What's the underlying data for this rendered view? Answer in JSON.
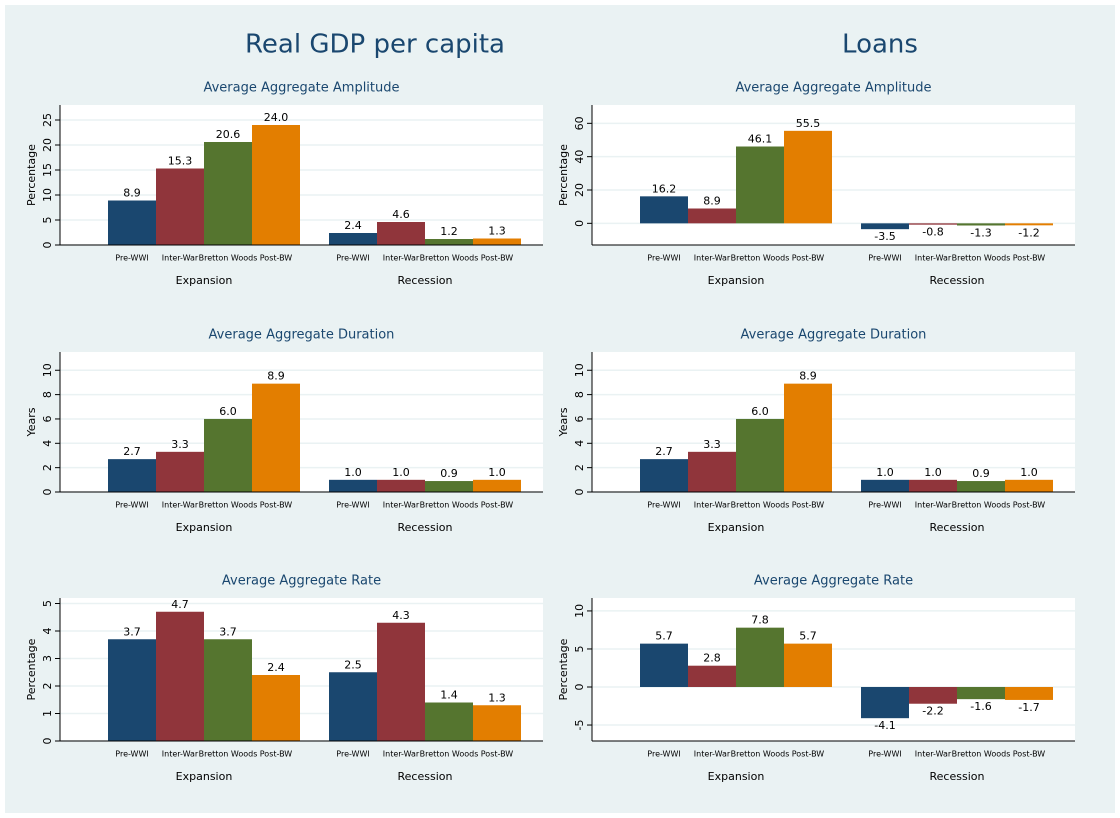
{
  "column_titles": [
    "Real GDP per capita",
    "Loans"
  ],
  "chart_data": [
    {
      "type": "bar",
      "title": "Average Aggregate Amplitude",
      "ylabel": "Percentage",
      "grid": true,
      "categories": [
        "Expansion",
        "Recession"
      ],
      "ylim": [
        0,
        28
      ],
      "yticks": [
        0,
        5,
        10,
        15,
        20,
        25
      ],
      "series": [
        {
          "name": "Pre-WWI",
          "color": "#1a476f",
          "values": [
            8.9,
            2.4
          ],
          "value_labels": [
            "8.9",
            "2.4"
          ]
        },
        {
          "name": "Inter-War",
          "color": "#90353b",
          "values": [
            15.3,
            4.6
          ],
          "value_labels": [
            "15.3",
            "4.6"
          ]
        },
        {
          "name": "Bretton Woods",
          "color": "#55752f",
          "values": [
            20.6,
            1.2
          ],
          "value_labels": [
            "20.6",
            "1.2"
          ]
        },
        {
          "name": "Post-BW",
          "color": "#e37e00",
          "values": [
            24.0,
            1.3
          ],
          "value_labels": [
            "24.0",
            "1.3"
          ]
        }
      ]
    },
    {
      "type": "bar",
      "title": "Average Aggregate Amplitude",
      "ylabel": "Percentage",
      "grid": true,
      "categories": [
        "Expansion",
        "Recession"
      ],
      "ylim": [
        -13,
        71
      ],
      "yticks": [
        0,
        20,
        40,
        60
      ],
      "series": [
        {
          "name": "Pre-WWI",
          "color": "#1a476f",
          "values": [
            16.2,
            -3.5
          ],
          "value_labels": [
            "16.2",
            "-3.5"
          ]
        },
        {
          "name": "Inter-War",
          "color": "#90353b",
          "values": [
            8.9,
            -0.8
          ],
          "value_labels": [
            "8.9",
            "-0.8"
          ]
        },
        {
          "name": "Bretton Woods",
          "color": "#55752f",
          "values": [
            46.1,
            -1.3
          ],
          "value_labels": [
            "46.1",
            "-1.3"
          ]
        },
        {
          "name": "Post-BW",
          "color": "#e37e00",
          "values": [
            55.5,
            -1.2
          ],
          "value_labels": [
            "55.5",
            "-1.2"
          ]
        }
      ]
    },
    {
      "type": "bar",
      "title": "Average Aggregate Duration",
      "ylabel": "Years",
      "grid": true,
      "categories": [
        "Expansion",
        "Recession"
      ],
      "ylim": [
        0,
        11.5
      ],
      "yticks": [
        0,
        2,
        4,
        6,
        8,
        10
      ],
      "series": [
        {
          "name": "Pre-WWI",
          "color": "#1a476f",
          "values": [
            2.7,
            1.0
          ],
          "value_labels": [
            "2.7",
            "1.0"
          ]
        },
        {
          "name": "Inter-War",
          "color": "#90353b",
          "values": [
            3.3,
            1.0
          ],
          "value_labels": [
            "3.3",
            "1.0"
          ]
        },
        {
          "name": "Bretton Woods",
          "color": "#55752f",
          "values": [
            6.0,
            0.9
          ],
          "value_labels": [
            "6.0",
            "0.9"
          ]
        },
        {
          "name": "Post-BW",
          "color": "#e37e00",
          "values": [
            8.9,
            1.0
          ],
          "value_labels": [
            "8.9",
            "1.0"
          ]
        }
      ]
    },
    {
      "type": "bar",
      "title": "Average Aggregate Duration",
      "ylabel": "Years",
      "grid": true,
      "categories": [
        "Expansion",
        "Recession"
      ],
      "ylim": [
        0,
        11.5
      ],
      "yticks": [
        0,
        2,
        4,
        6,
        8,
        10
      ],
      "series": [
        {
          "name": "Pre-WWI",
          "color": "#1a476f",
          "values": [
            2.7,
            1.0
          ],
          "value_labels": [
            "2.7",
            "1.0"
          ]
        },
        {
          "name": "Inter-War",
          "color": "#90353b",
          "values": [
            3.3,
            1.0
          ],
          "value_labels": [
            "3.3",
            "1.0"
          ]
        },
        {
          "name": "Bretton Woods",
          "color": "#55752f",
          "values": [
            6.0,
            0.9
          ],
          "value_labels": [
            "6.0",
            "0.9"
          ]
        },
        {
          "name": "Post-BW",
          "color": "#e37e00",
          "values": [
            8.9,
            1.0
          ],
          "value_labels": [
            "8.9",
            "1.0"
          ]
        }
      ]
    },
    {
      "type": "bar",
      "title": "Average Aggregate Rate",
      "ylabel": "Percentage",
      "grid": true,
      "categories": [
        "Expansion",
        "Recession"
      ],
      "ylim": [
        0,
        5.2
      ],
      "yticks": [
        0,
        1,
        2,
        3,
        4,
        5
      ],
      "series": [
        {
          "name": "Pre-WWI",
          "color": "#1a476f",
          "values": [
            3.7,
            2.5
          ],
          "value_labels": [
            "3.7",
            "2.5"
          ]
        },
        {
          "name": "Inter-War",
          "color": "#90353b",
          "values": [
            4.7,
            4.3
          ],
          "value_labels": [
            "4.7",
            "4.3"
          ]
        },
        {
          "name": "Bretton Woods",
          "color": "#55752f",
          "values": [
            3.7,
            1.4
          ],
          "value_labels": [
            "3.7",
            "1.4"
          ]
        },
        {
          "name": "Post-BW",
          "color": "#e37e00",
          "values": [
            2.4,
            1.3
          ],
          "value_labels": [
            "2.4",
            "1.3"
          ]
        }
      ]
    },
    {
      "type": "bar",
      "title": "Average Aggregate Rate",
      "ylabel": "Percentage",
      "grid": true,
      "categories": [
        "Expansion",
        "Recession"
      ],
      "ylim": [
        -7.1,
        11.7
      ],
      "yticks": [
        -5,
        0,
        5,
        10
      ],
      "series": [
        {
          "name": "Pre-WWI",
          "color": "#1a476f",
          "values": [
            5.7,
            -4.1
          ],
          "value_labels": [
            "5.7",
            "-4.1"
          ]
        },
        {
          "name": "Inter-War",
          "color": "#90353b",
          "values": [
            2.8,
            -2.2
          ],
          "value_labels": [
            "2.8",
            "-2.2"
          ]
        },
        {
          "name": "Bretton Woods",
          "color": "#55752f",
          "values": [
            7.8,
            -1.6
          ],
          "value_labels": [
            "7.8",
            "-1.6"
          ]
        },
        {
          "name": "Post-BW",
          "color": "#e37e00",
          "values": [
            5.7,
            -1.7
          ],
          "value_labels": [
            "5.7",
            "-1.7"
          ]
        }
      ]
    }
  ]
}
